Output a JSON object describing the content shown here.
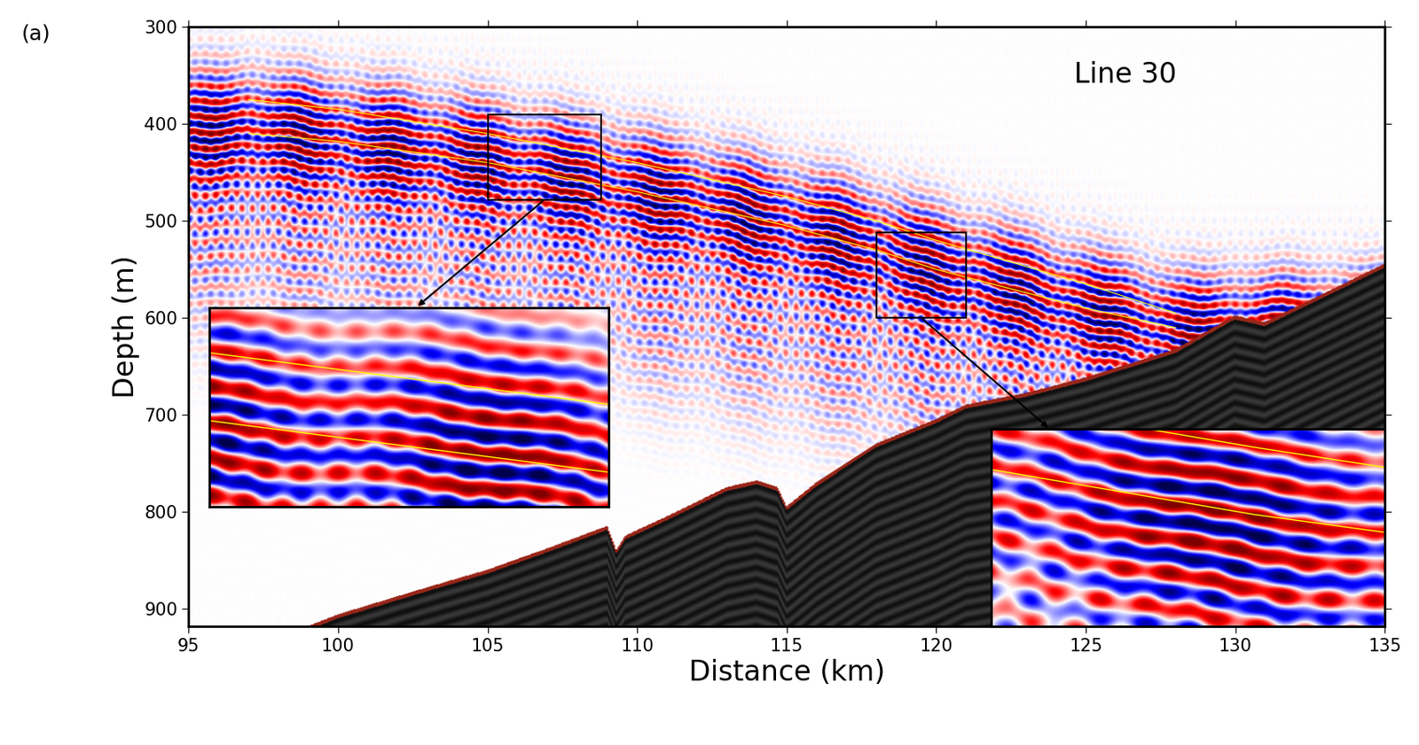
{
  "chart_data": {
    "type": "seismic_section",
    "panel_label": "(a)",
    "title": "Line 30",
    "x_label": "Distance (km)",
    "y_label": "Depth (m)",
    "xlim": [
      95,
      135
    ],
    "ylim": [
      918,
      300
    ],
    "xticks": [
      95,
      100,
      105,
      110,
      115,
      120,
      125,
      130,
      135
    ],
    "yticks": [
      300,
      400,
      500,
      600,
      700,
      800,
      900
    ],
    "seafloor": {
      "x": [
        99,
        100,
        103,
        105,
        107,
        109,
        109.3,
        109.6,
        111,
        113,
        114,
        114.7,
        115,
        116,
        118,
        120,
        121,
        123,
        125,
        128,
        130,
        131,
        132,
        135
      ],
      "depth": [
        918,
        906,
        878,
        860,
        838,
        815,
        840,
        825,
        805,
        775,
        768,
        775,
        795,
        770,
        730,
        705,
        690,
        678,
        662,
        633,
        598,
        605,
        590,
        545
      ]
    },
    "horizons": [
      {
        "color": "#ffff00",
        "x": [
          97,
          100,
          105,
          110,
          115,
          118,
          120,
          125,
          128
        ],
        "depth": [
          375,
          385,
          410,
          440,
          475,
          500,
          520,
          565,
          595
        ]
      },
      {
        "color": "#ffff00",
        "x": [
          97,
          100,
          105,
          110,
          115,
          118,
          120,
          125,
          128
        ],
        "depth": [
          410,
          418,
          440,
          470,
          505,
          530,
          550,
          590,
          610
        ]
      }
    ],
    "zoom_boxes": [
      {
        "xlim": [
          105,
          108.8
        ],
        "ylim": [
          478,
          390
        ]
      },
      {
        "xlim": [
          118,
          121
        ],
        "ylim": [
          600,
          512
        ]
      }
    ]
  }
}
